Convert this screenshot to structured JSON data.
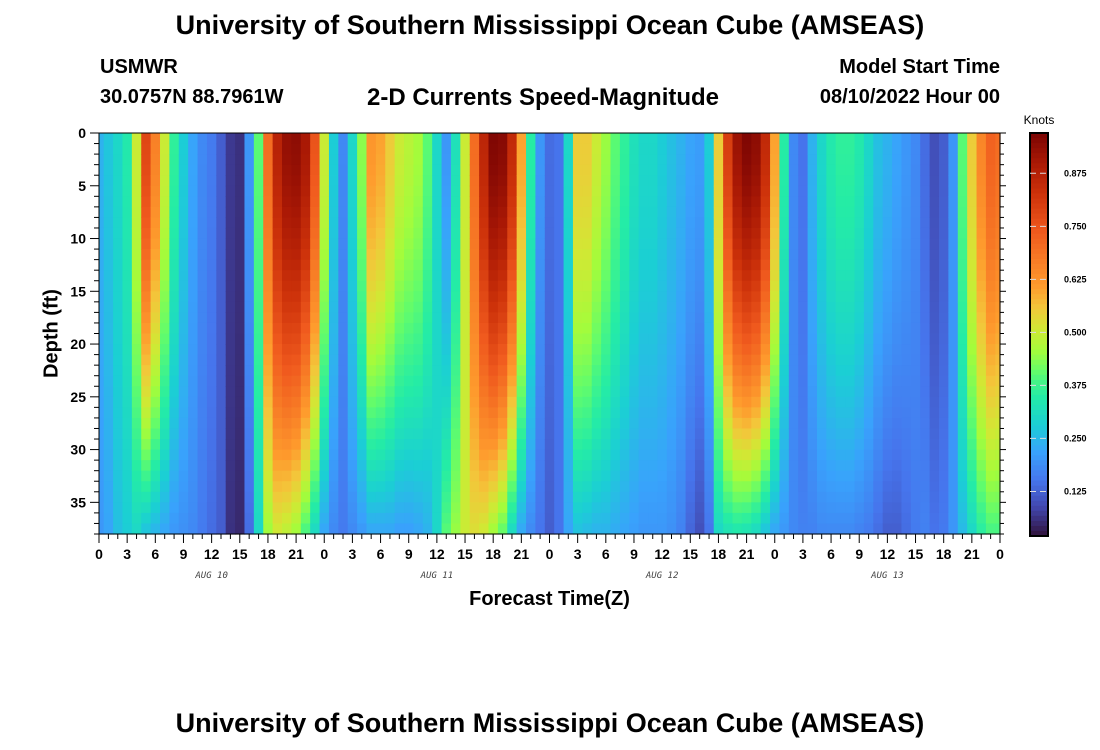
{
  "header": {
    "title": "University of Southern Mississippi Ocean Cube (AMSEAS)",
    "station": "USMWR",
    "coords": "30.0757N  88.7961W",
    "subtitle": "2-D Currents Speed-Magnitude",
    "model_start_label": "Model Start Time",
    "model_start_value": "08/10/2022 Hour 00"
  },
  "footer": {
    "title": "University of Southern Mississippi Ocean Cube (AMSEAS)"
  },
  "chart_data": {
    "type": "heatmap",
    "title": "2-D Currents Speed-Magnitude",
    "xlabel": "Forecast Time(Z)",
    "ylabel": "Depth (ft)",
    "x_range_hours": [
      0,
      96
    ],
    "y_range_ft": [
      0,
      38
    ],
    "x_tick_labels": [
      "0",
      "3",
      "6",
      "9",
      "12",
      "15",
      "18",
      "21",
      "0",
      "3",
      "6",
      "9",
      "12",
      "15",
      "18",
      "21",
      "0",
      "3",
      "6",
      "9",
      "12",
      "15",
      "18",
      "21",
      "0",
      "3",
      "6",
      "9",
      "12",
      "15",
      "18",
      "21",
      "0"
    ],
    "y_ticks": [
      0,
      5,
      10,
      15,
      20,
      25,
      30,
      35
    ],
    "day_labels": [
      {
        "hour": 12,
        "label": "AUG 10"
      },
      {
        "hour": 36,
        "label": "AUG 11"
      },
      {
        "hour": 60,
        "label": "AUG 12"
      },
      {
        "hour": 84,
        "label": "AUG 13"
      }
    ],
    "colorbar": {
      "unit": "Knots",
      "min": 0.02,
      "max": 0.97,
      "ticks": [
        0.125,
        0.25,
        0.375,
        0.5,
        0.625,
        0.75,
        0.875
      ],
      "tick_labels": [
        "0.125",
        "0.250",
        "0.375",
        "0.500",
        "0.625",
        "0.750",
        "0.875"
      ]
    },
    "surface_speed_by_hour": [
      [
        0,
        0.24
      ],
      [
        1,
        0.27
      ],
      [
        2,
        0.3
      ],
      [
        3,
        0.34
      ],
      [
        4,
        0.5
      ],
      [
        5,
        0.78
      ],
      [
        6,
        0.66
      ],
      [
        7,
        0.5
      ],
      [
        8,
        0.36
      ],
      [
        9,
        0.28
      ],
      [
        10,
        0.22
      ],
      [
        11,
        0.18
      ],
      [
        12,
        0.16
      ],
      [
        13,
        0.12
      ],
      [
        14,
        0.07
      ],
      [
        15,
        0.06
      ],
      [
        16,
        0.2
      ],
      [
        17,
        0.4
      ],
      [
        18,
        0.7
      ],
      [
        19,
        0.87
      ],
      [
        20,
        0.93
      ],
      [
        21,
        0.94
      ],
      [
        22,
        0.9
      ],
      [
        23,
        0.75
      ],
      [
        24,
        0.5
      ],
      [
        25,
        0.28
      ],
      [
        26,
        0.18
      ],
      [
        27,
        0.3
      ],
      [
        28,
        0.44
      ],
      [
        29,
        0.62
      ],
      [
        30,
        0.6
      ],
      [
        31,
        0.55
      ],
      [
        32,
        0.5
      ],
      [
        33,
        0.48
      ],
      [
        34,
        0.46
      ],
      [
        35,
        0.4
      ],
      [
        36,
        0.3
      ],
      [
        37,
        0.2
      ],
      [
        38,
        0.32
      ],
      [
        39,
        0.5
      ],
      [
        40,
        0.7
      ],
      [
        41,
        0.86
      ],
      [
        42,
        0.96
      ],
      [
        43,
        0.95
      ],
      [
        44,
        0.85
      ],
      [
        45,
        0.6
      ],
      [
        46,
        0.35
      ],
      [
        47,
        0.2
      ],
      [
        48,
        0.14
      ],
      [
        49,
        0.15
      ],
      [
        50,
        0.3
      ],
      [
        51,
        0.55
      ],
      [
        52,
        0.55
      ],
      [
        53,
        0.5
      ],
      [
        54,
        0.45
      ],
      [
        55,
        0.4
      ],
      [
        56,
        0.36
      ],
      [
        57,
        0.32
      ],
      [
        58,
        0.3
      ],
      [
        59,
        0.3
      ],
      [
        60,
        0.28
      ],
      [
        61,
        0.26
      ],
      [
        62,
        0.24
      ],
      [
        63,
        0.22
      ],
      [
        64,
        0.21
      ],
      [
        65,
        0.28
      ],
      [
        66,
        0.55
      ],
      [
        67,
        0.8
      ],
      [
        68,
        0.92
      ],
      [
        69,
        0.96
      ],
      [
        70,
        0.94
      ],
      [
        71,
        0.85
      ],
      [
        72,
        0.6
      ],
      [
        73,
        0.35
      ],
      [
        74,
        0.18
      ],
      [
        75,
        0.15
      ],
      [
        76,
        0.24
      ],
      [
        77,
        0.3
      ],
      [
        78,
        0.34
      ],
      [
        79,
        0.36
      ],
      [
        80,
        0.36
      ],
      [
        81,
        0.34
      ],
      [
        82,
        0.3
      ],
      [
        83,
        0.26
      ],
      [
        84,
        0.24
      ],
      [
        85,
        0.22
      ],
      [
        86,
        0.2
      ],
      [
        87,
        0.18
      ],
      [
        88,
        0.14
      ],
      [
        89,
        0.1
      ],
      [
        90,
        0.12
      ],
      [
        91,
        0.2
      ],
      [
        92,
        0.4
      ],
      [
        93,
        0.55
      ],
      [
        94,
        0.65
      ],
      [
        95,
        0.72
      ],
      [
        96,
        0.7
      ]
    ],
    "bottom_speed_by_hour": [
      [
        0,
        0.2
      ],
      [
        1,
        0.22
      ],
      [
        2,
        0.26
      ],
      [
        3,
        0.28
      ],
      [
        4,
        0.3
      ],
      [
        5,
        0.26
      ],
      [
        6,
        0.24
      ],
      [
        7,
        0.22
      ],
      [
        8,
        0.2
      ],
      [
        9,
        0.19
      ],
      [
        10,
        0.18
      ],
      [
        11,
        0.16
      ],
      [
        12,
        0.14
      ],
      [
        13,
        0.12
      ],
      [
        14,
        0.06
      ],
      [
        15,
        0.05
      ],
      [
        16,
        0.14
      ],
      [
        17,
        0.3
      ],
      [
        18,
        0.45
      ],
      [
        19,
        0.5
      ],
      [
        20,
        0.48
      ],
      [
        21,
        0.45
      ],
      [
        22,
        0.38
      ],
      [
        23,
        0.3
      ],
      [
        24,
        0.22
      ],
      [
        25,
        0.18
      ],
      [
        26,
        0.16
      ],
      [
        27,
        0.18
      ],
      [
        28,
        0.2
      ],
      [
        29,
        0.22
      ],
      [
        30,
        0.22
      ],
      [
        31,
        0.22
      ],
      [
        32,
        0.21
      ],
      [
        33,
        0.21
      ],
      [
        34,
        0.22
      ],
      [
        35,
        0.24
      ],
      [
        36,
        0.3
      ],
      [
        37,
        0.4
      ],
      [
        38,
        0.45
      ],
      [
        39,
        0.5
      ],
      [
        40,
        0.52
      ],
      [
        41,
        0.5
      ],
      [
        42,
        0.45
      ],
      [
        43,
        0.4
      ],
      [
        44,
        0.3
      ],
      [
        45,
        0.22
      ],
      [
        46,
        0.18
      ],
      [
        47,
        0.15
      ],
      [
        48,
        0.12
      ],
      [
        49,
        0.15
      ],
      [
        50,
        0.22
      ],
      [
        51,
        0.26
      ],
      [
        52,
        0.25
      ],
      [
        53,
        0.24
      ],
      [
        54,
        0.24
      ],
      [
        55,
        0.23
      ],
      [
        56,
        0.22
      ],
      [
        57,
        0.21
      ],
      [
        58,
        0.2
      ],
      [
        59,
        0.2
      ],
      [
        60,
        0.2
      ],
      [
        61,
        0.19
      ],
      [
        62,
        0.17
      ],
      [
        63,
        0.13
      ],
      [
        64,
        0.1
      ],
      [
        65,
        0.15
      ],
      [
        66,
        0.3
      ],
      [
        67,
        0.32
      ],
      [
        68,
        0.33
      ],
      [
        69,
        0.32
      ],
      [
        70,
        0.3
      ],
      [
        71,
        0.26
      ],
      [
        72,
        0.22
      ],
      [
        73,
        0.2
      ],
      [
        74,
        0.18
      ],
      [
        75,
        0.17
      ],
      [
        76,
        0.17
      ],
      [
        77,
        0.18
      ],
      [
        78,
        0.18
      ],
      [
        79,
        0.18
      ],
      [
        80,
        0.18
      ],
      [
        81,
        0.17
      ],
      [
        82,
        0.16
      ],
      [
        83,
        0.14
      ],
      [
        84,
        0.12
      ],
      [
        85,
        0.12
      ],
      [
        86,
        0.14
      ],
      [
        87,
        0.16
      ],
      [
        88,
        0.17
      ],
      [
        89,
        0.15
      ],
      [
        90,
        0.16
      ],
      [
        91,
        0.2
      ],
      [
        92,
        0.25
      ],
      [
        93,
        0.3
      ],
      [
        94,
        0.35
      ],
      [
        95,
        0.38
      ],
      [
        96,
        0.38
      ]
    ]
  }
}
